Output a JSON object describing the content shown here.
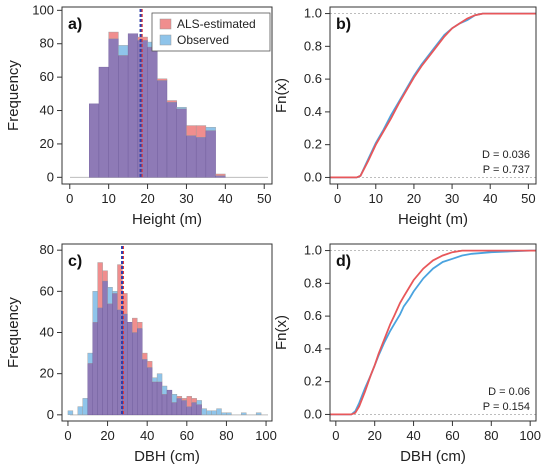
{
  "colors": {
    "estimated": "#e8575a",
    "observed": "#4aa3df",
    "estimated_fill": "#f08e8e",
    "observed_fill": "#8fc4ea",
    "overlap_fill": "#8e7ab6",
    "mean_red": "#e53935",
    "mean_blue": "#2d3fae"
  },
  "legend": [
    "ALS-estimated",
    "Observed"
  ],
  "chart_data": [
    {
      "panel": "a)",
      "type": "bar",
      "subtype": "overlapping-histogram",
      "xlabel": "Height (m)",
      "ylabel": "Frequency",
      "xlim": [
        -2,
        52
      ],
      "ylim": [
        -4,
        102
      ],
      "xticks": [
        0,
        10,
        20,
        30,
        40,
        50
      ],
      "yticks": [
        0,
        20,
        40,
        60,
        80,
        100
      ],
      "bin_width": 2.5,
      "bin_starts": [
        5,
        7.5,
        10,
        12.5,
        15,
        17.5,
        20,
        22.5,
        25,
        27.5,
        30,
        32.5,
        35,
        37.5
      ],
      "series": [
        {
          "name": "ALS-estimated",
          "values": [
            44,
            66,
            87,
            73,
            86,
            84,
            78,
            59,
            46,
            41,
            31,
            31,
            28,
            2
          ]
        },
        {
          "name": "Observed",
          "values": [
            44,
            66,
            83,
            79,
            86,
            82,
            81,
            58,
            45,
            42,
            25,
            24,
            30,
            1
          ]
        }
      ],
      "mean_lines": [
        {
          "series": "ALS-estimated",
          "x": 18.5
        },
        {
          "series": "Observed",
          "x": 18.2
        }
      ],
      "legend_position": "top-right"
    },
    {
      "panel": "b)",
      "type": "line",
      "subtype": "ecdf",
      "xlabel": "Height (m)",
      "ylabel": "Fn(x)",
      "xlim": [
        -2,
        52
      ],
      "ylim": [
        -0.04,
        1.04
      ],
      "xticks": [
        0,
        10,
        20,
        30,
        40,
        50
      ],
      "yticks": [
        "0.0",
        "0.2",
        "0.4",
        "0.6",
        "0.8",
        "1.0"
      ],
      "x": [
        -2,
        5,
        6,
        8,
        10,
        12,
        14,
        16,
        18,
        20,
        22,
        24,
        26,
        28,
        30,
        32,
        34,
        36,
        38,
        40,
        52
      ],
      "series": [
        {
          "name": "ALS-estimated",
          "values": [
            0,
            0,
            0.01,
            0.1,
            0.2,
            0.28,
            0.36,
            0.45,
            0.53,
            0.61,
            0.68,
            0.74,
            0.8,
            0.86,
            0.91,
            0.94,
            0.97,
            0.99,
            1.0,
            1.0,
            1.0
          ]
        },
        {
          "name": "Observed",
          "values": [
            0,
            0,
            0.01,
            0.11,
            0.21,
            0.29,
            0.38,
            0.46,
            0.54,
            0.62,
            0.69,
            0.75,
            0.81,
            0.87,
            0.91,
            0.94,
            0.96,
            0.99,
            1.0,
            1.0,
            1.0
          ]
        }
      ],
      "annotations": [
        "D = 0.036",
        "P = 0.737"
      ]
    },
    {
      "panel": "c)",
      "type": "bar",
      "subtype": "overlapping-histogram",
      "xlabel": "DBH (cm)",
      "ylabel": "Frequency",
      "xlim": [
        -3,
        103
      ],
      "ylim": [
        -3,
        83
      ],
      "xticks": [
        0,
        20,
        40,
        60,
        80,
        100
      ],
      "yticks": [
        0,
        20,
        40,
        60,
        80
      ],
      "bin_width": 2.5,
      "bin_starts": [
        0,
        2.5,
        5,
        7.5,
        10,
        12.5,
        15,
        17.5,
        20,
        22.5,
        25,
        27.5,
        30,
        32.5,
        35,
        37.5,
        40,
        42.5,
        45,
        47.5,
        50,
        52.5,
        55,
        57.5,
        60,
        62.5,
        65,
        67.5,
        70,
        72.5,
        75,
        77.5,
        80,
        82.5,
        85,
        87.5,
        90,
        92.5,
        95
      ],
      "series": [
        {
          "name": "ALS-estimated",
          "values": [
            0,
            0,
            0,
            0,
            25,
            45,
            74,
            70,
            54,
            59,
            73,
            59,
            45,
            47,
            45,
            30,
            26,
            16,
            16,
            10,
            12,
            6,
            9,
            8,
            9,
            8,
            5,
            0,
            0,
            0,
            0,
            0,
            0,
            0,
            0,
            0,
            0,
            0,
            0
          ]
        },
        {
          "name": "Observed",
          "values": [
            2,
            0,
            4,
            8,
            30,
            60,
            52,
            65,
            62,
            60,
            51,
            49,
            45,
            40,
            42,
            27,
            23,
            18,
            20,
            14,
            12,
            10,
            8,
            7,
            4,
            6,
            7,
            3,
            2,
            2,
            3,
            1,
            1,
            0,
            0,
            1,
            0,
            0,
            1
          ]
        }
      ],
      "mean_lines": [
        {
          "series": "ALS-estimated",
          "x": 27.8
        },
        {
          "series": "Observed",
          "x": 27.3
        }
      ]
    },
    {
      "panel": "d)",
      "type": "line",
      "subtype": "ecdf",
      "xlabel": "DBH (cm)",
      "ylabel": "Fn(x)",
      "xlim": [
        -3,
        103
      ],
      "ylim": [
        -0.04,
        1.04
      ],
      "xticks": [
        0,
        20,
        40,
        60,
        80,
        100
      ],
      "yticks": [
        "0.0",
        "0.2",
        "0.4",
        "0.6",
        "0.8",
        "1.0"
      ],
      "x": [
        -3,
        8,
        10,
        12,
        15,
        18,
        20,
        22,
        25,
        28,
        30,
        33,
        35,
        38,
        40,
        45,
        50,
        55,
        60,
        65,
        70,
        80,
        90,
        100,
        103
      ],
      "series": [
        {
          "name": "ALS-estimated",
          "values": [
            0,
            0,
            0.01,
            0.05,
            0.14,
            0.24,
            0.3,
            0.37,
            0.46,
            0.55,
            0.6,
            0.68,
            0.72,
            0.78,
            0.82,
            0.89,
            0.94,
            0.97,
            0.99,
            1.0,
            1.0,
            1.0,
            1.0,
            1.0,
            1.0
          ]
        },
        {
          "name": "Observed",
          "values": [
            0,
            0,
            0.02,
            0.07,
            0.16,
            0.24,
            0.3,
            0.36,
            0.44,
            0.51,
            0.55,
            0.61,
            0.66,
            0.71,
            0.75,
            0.83,
            0.89,
            0.93,
            0.95,
            0.97,
            0.98,
            0.99,
            0.995,
            1.0,
            1.0
          ]
        }
      ],
      "annotations": [
        "D = 0.06",
        "P = 0.154"
      ]
    }
  ]
}
